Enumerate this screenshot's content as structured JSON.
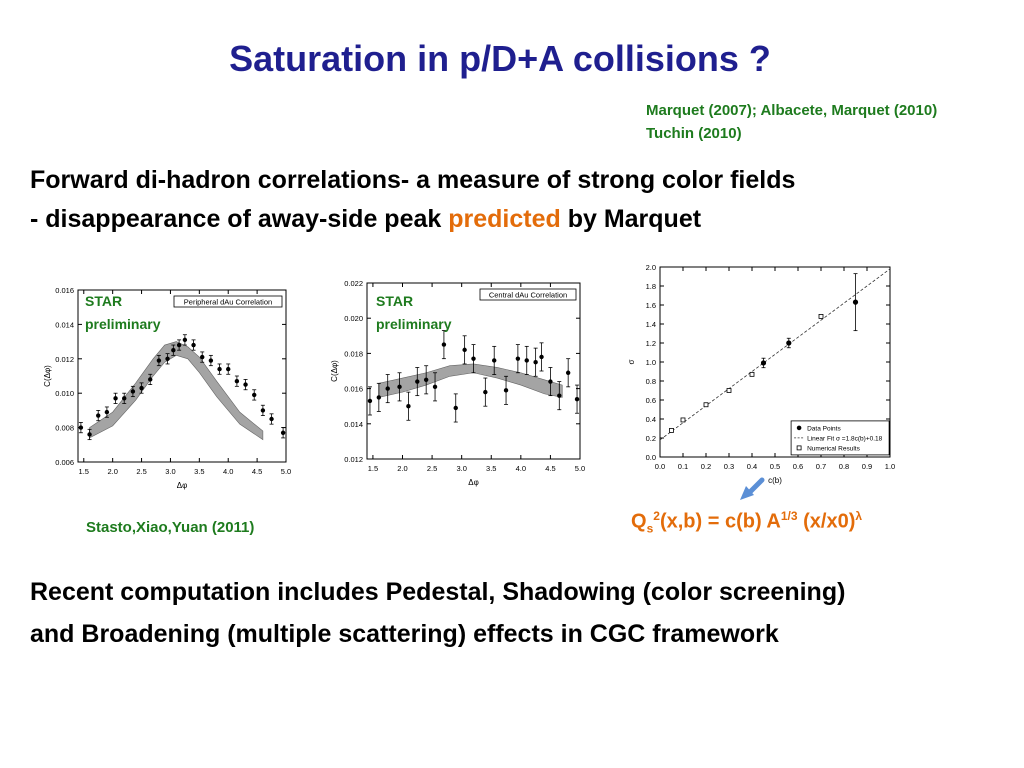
{
  "slide": {
    "title": "Saturation in p/D+A collisions ?",
    "refs": [
      "Marquet (2007); Albacete, Marquet (2010)",
      "Tuchin (2010)"
    ],
    "line1": "Forward di-hadron correlations-  a measure of strong color fields",
    "line2_pre": "- disappearance of away-side peak ",
    "line2_hl": "predicted",
    "line2_post": " by Marquet",
    "star_label_1": "STAR",
    "star_label_2": "preliminary",
    "citation": "Stasto,Xiao,Yuan (2011)",
    "formula": {
      "q": "Q",
      "s": "s",
      "sq": "2",
      "mid": "(x,b) = c(b) A",
      "pow": "1/3",
      "tail": " (x/x0)",
      "lam": "λ"
    },
    "bottom1": "Recent computation includes Pedestal, Shadowing (color screening)",
    "bottom2": "and Broadening (multiple scattering) effects in CGC framework"
  },
  "chart_data": [
    {
      "type": "scatter",
      "title": "Peripheral dAu Correlation",
      "xlabel": "Δφ",
      "ylabel": "C(Δφ)",
      "xlim": [
        1.4,
        5.0
      ],
      "ylim": [
        0.006,
        0.016
      ],
      "xticks": [
        "1.5",
        "2.0",
        "2.5",
        "3.0",
        "3.5",
        "4.0",
        "4.5",
        "5.0"
      ],
      "yticks": [
        "0.006",
        "0.008",
        "0.010",
        "0.012",
        "0.014",
        "0.016"
      ],
      "points": [
        {
          "x": 1.45,
          "y": 0.008,
          "e": 0.0003
        },
        {
          "x": 1.6,
          "y": 0.0076,
          "e": 0.0003
        },
        {
          "x": 1.75,
          "y": 0.0087,
          "e": 0.0003
        },
        {
          "x": 1.9,
          "y": 0.0089,
          "e": 0.0003
        },
        {
          "x": 2.05,
          "y": 0.0097,
          "e": 0.0003
        },
        {
          "x": 2.2,
          "y": 0.0097,
          "e": 0.0003
        },
        {
          "x": 2.35,
          "y": 0.0101,
          "e": 0.0003
        },
        {
          "x": 2.5,
          "y": 0.0103,
          "e": 0.0003
        },
        {
          "x": 2.65,
          "y": 0.0108,
          "e": 0.0003
        },
        {
          "x": 2.8,
          "y": 0.0119,
          "e": 0.0003
        },
        {
          "x": 2.95,
          "y": 0.012,
          "e": 0.0003
        },
        {
          "x": 3.05,
          "y": 0.0125,
          "e": 0.0003
        },
        {
          "x": 3.15,
          "y": 0.0128,
          "e": 0.0003
        },
        {
          "x": 3.25,
          "y": 0.0131,
          "e": 0.0003
        },
        {
          "x": 3.4,
          "y": 0.0128,
          "e": 0.0003
        },
        {
          "x": 3.55,
          "y": 0.0121,
          "e": 0.0003
        },
        {
          "x": 3.7,
          "y": 0.0119,
          "e": 0.0003
        },
        {
          "x": 3.85,
          "y": 0.0114,
          "e": 0.0003
        },
        {
          "x": 4.0,
          "y": 0.0114,
          "e": 0.0003
        },
        {
          "x": 4.15,
          "y": 0.0107,
          "e": 0.0003
        },
        {
          "x": 4.3,
          "y": 0.0105,
          "e": 0.0003
        },
        {
          "x": 4.45,
          "y": 0.0099,
          "e": 0.0003
        },
        {
          "x": 4.6,
          "y": 0.009,
          "e": 0.0003
        },
        {
          "x": 4.75,
          "y": 0.0085,
          "e": 0.0003
        },
        {
          "x": 4.95,
          "y": 0.0077,
          "e": 0.0003
        }
      ],
      "band": {
        "x": [
          1.6,
          2.0,
          2.4,
          2.7,
          2.9,
          3.1,
          3.3,
          3.5,
          3.8,
          4.2,
          4.6
        ],
        "lower": [
          0.0074,
          0.0081,
          0.0096,
          0.011,
          0.0118,
          0.0122,
          0.012,
          0.0112,
          0.0098,
          0.0082,
          0.0073
        ],
        "upper": [
          0.008,
          0.0089,
          0.0106,
          0.012,
          0.0128,
          0.013,
          0.0127,
          0.0121,
          0.0107,
          0.0089,
          0.0078
        ]
      }
    },
    {
      "type": "scatter",
      "title": "Central dAu Correlation",
      "xlabel": "Δφ",
      "ylabel": "C(Δφ)",
      "xlim": [
        1.4,
        5.0
      ],
      "ylim": [
        0.012,
        0.022
      ],
      "xticks": [
        "1.5",
        "2.0",
        "2.5",
        "3.0",
        "3.5",
        "4.0",
        "4.5",
        "5.0"
      ],
      "yticks": [
        "0.012",
        "0.014",
        "0.016",
        "0.018",
        "0.020",
        "0.022"
      ],
      "points": [
        {
          "x": 1.45,
          "y": 0.0153,
          "e": 0.0008
        },
        {
          "x": 1.6,
          "y": 0.0155,
          "e": 0.0008
        },
        {
          "x": 1.75,
          "y": 0.016,
          "e": 0.0008
        },
        {
          "x": 1.95,
          "y": 0.0161,
          "e": 0.0008
        },
        {
          "x": 2.1,
          "y": 0.015,
          "e": 0.0008
        },
        {
          "x": 2.25,
          "y": 0.0164,
          "e": 0.0008
        },
        {
          "x": 2.4,
          "y": 0.0165,
          "e": 0.0008
        },
        {
          "x": 2.55,
          "y": 0.0161,
          "e": 0.0008
        },
        {
          "x": 2.7,
          "y": 0.0185,
          "e": 0.0008
        },
        {
          "x": 2.9,
          "y": 0.0149,
          "e": 0.0008
        },
        {
          "x": 3.05,
          "y": 0.0182,
          "e": 0.0008
        },
        {
          "x": 3.2,
          "y": 0.0177,
          "e": 0.0008
        },
        {
          "x": 3.4,
          "y": 0.0158,
          "e": 0.0008
        },
        {
          "x": 3.55,
          "y": 0.0176,
          "e": 0.0008
        },
        {
          "x": 3.75,
          "y": 0.0159,
          "e": 0.0008
        },
        {
          "x": 3.95,
          "y": 0.0177,
          "e": 0.0008
        },
        {
          "x": 4.1,
          "y": 0.0176,
          "e": 0.0008
        },
        {
          "x": 4.25,
          "y": 0.0175,
          "e": 0.0008
        },
        {
          "x": 4.35,
          "y": 0.0178,
          "e": 0.0008
        },
        {
          "x": 4.5,
          "y": 0.0164,
          "e": 0.0008
        },
        {
          "x": 4.65,
          "y": 0.0156,
          "e": 0.0008
        },
        {
          "x": 4.8,
          "y": 0.0169,
          "e": 0.0008
        },
        {
          "x": 4.95,
          "y": 0.0154,
          "e": 0.0008
        }
      ],
      "band": {
        "x": [
          1.6,
          2.0,
          2.4,
          2.8,
          3.2,
          3.6,
          4.0,
          4.4,
          4.7
        ],
        "lower": [
          0.0155,
          0.0158,
          0.0162,
          0.0167,
          0.0169,
          0.0166,
          0.0162,
          0.0157,
          0.0155
        ],
        "upper": [
          0.0163,
          0.0166,
          0.0169,
          0.0173,
          0.0174,
          0.0172,
          0.0169,
          0.0165,
          0.0162
        ]
      }
    },
    {
      "type": "scatter",
      "xlabel": "c(b)",
      "ylabel": "σ",
      "xlim": [
        0.0,
        1.0
      ],
      "ylim": [
        0.0,
        2.0
      ],
      "xticks": [
        "0.0",
        "0.1",
        "0.2",
        "0.3",
        "0.4",
        "0.5",
        "0.6",
        "0.7",
        "0.8",
        "0.9",
        "1.0"
      ],
      "yticks": [
        "0.0",
        "0.2",
        "0.4",
        "0.6",
        "0.8",
        "1.0",
        "1.2",
        "1.4",
        "1.6",
        "1.8",
        "2.0"
      ],
      "legend": [
        "Data Points",
        "Linear Fit σ =1.8c(b)+0.18",
        "Numerical Results"
      ],
      "legend_position": "bottom-right",
      "data_points": [
        {
          "x": 0.45,
          "y": 0.99,
          "e": 0.05
        },
        {
          "x": 0.56,
          "y": 1.2,
          "e": 0.05
        },
        {
          "x": 0.85,
          "y": 1.63,
          "e": 0.3
        }
      ],
      "numerical_results": [
        {
          "x": 0.05,
          "y": 0.28
        },
        {
          "x": 0.1,
          "y": 0.39
        },
        {
          "x": 0.2,
          "y": 0.55
        },
        {
          "x": 0.3,
          "y": 0.7
        },
        {
          "x": 0.4,
          "y": 0.87
        },
        {
          "x": 0.7,
          "y": 1.48
        }
      ],
      "fit": {
        "slope": 1.8,
        "intercept": 0.18
      }
    }
  ]
}
